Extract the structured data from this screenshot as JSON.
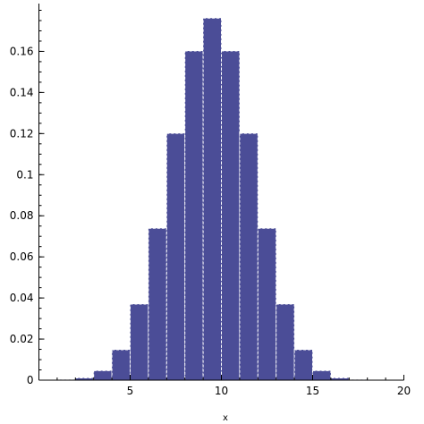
{
  "chart_data": {
    "type": "bar",
    "title": "",
    "xlabel": "x",
    "ylabel": "",
    "xlim": [
      0,
      20
    ],
    "ylim": [
      0,
      0.18
    ],
    "x_ticks": [
      {
        "value": 5,
        "label": "5"
      },
      {
        "value": 10,
        "label": "10"
      },
      {
        "value": 15,
        "label": "15"
      },
      {
        "value": 20,
        "label": "20"
      }
    ],
    "y_ticks": [
      {
        "value": 0,
        "label": "0"
      },
      {
        "value": 0.02,
        "label": "0.02"
      },
      {
        "value": 0.04,
        "label": "0.04"
      },
      {
        "value": 0.06,
        "label": "0.06"
      },
      {
        "value": 0.08,
        "label": "0.08"
      },
      {
        "value": 0.1,
        "label": "0.1"
      },
      {
        "value": 0.12,
        "label": "0.12"
      },
      {
        "value": 0.14,
        "label": "0.14"
      },
      {
        "value": 0.16,
        "label": "0.16"
      }
    ],
    "bin_width": 1,
    "x": [
      0.5,
      1.5,
      2.5,
      3.5,
      4.5,
      5.5,
      6.5,
      7.5,
      8.5,
      9.5,
      10.5,
      11.5,
      12.5,
      13.5,
      14.5,
      15.5,
      16.5,
      17.5,
      18.5,
      19.5
    ],
    "values": [
      0.0,
      0.0002,
      0.0011,
      0.0046,
      0.0148,
      0.037,
      0.0739,
      0.1201,
      0.1602,
      0.1762,
      0.1602,
      0.1201,
      0.0739,
      0.037,
      0.0148,
      0.0046,
      0.0011,
      0.0002,
      0.0,
      0.0
    ],
    "bar_color": "#4b4d97",
    "bar_edge_color": "#ffffff",
    "grid": false
  }
}
